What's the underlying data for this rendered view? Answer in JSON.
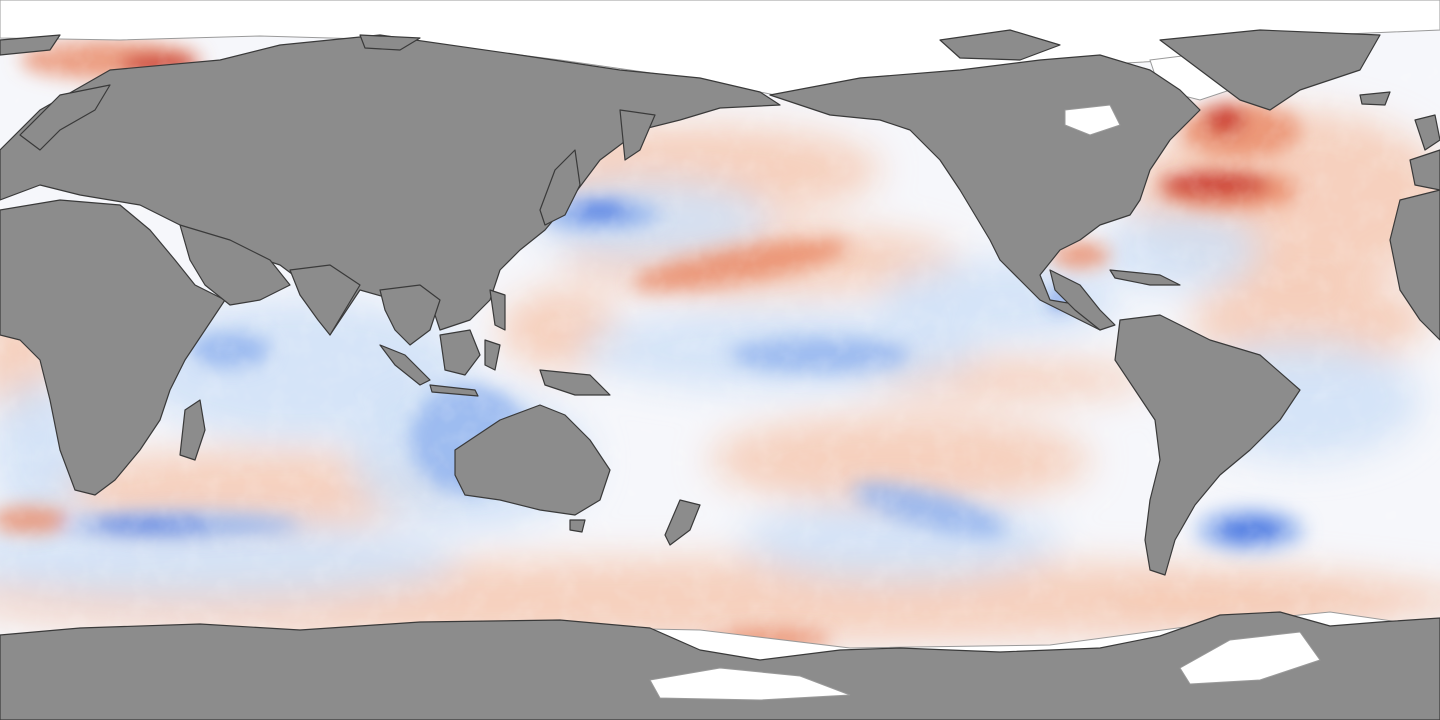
{
  "map": {
    "type": "sea-surface-temperature-anomaly",
    "projection": "equirectangular",
    "colors": {
      "land": "#8c8c8c",
      "coastline": "#3a3a3a",
      "sea_ice": "#ffffff",
      "ocean_neutral": "#f6f7fb",
      "warm_light": "#f6c9b3",
      "warm": "#ea8a67",
      "warm_strong": "#c8302a",
      "warm_extreme": "#7a0a0a",
      "cool_light": "#cfe0f7",
      "cool": "#8fb2ee",
      "cool_strong": "#3d6fe0",
      "cool_extreme": "#0a1e9e"
    }
  }
}
